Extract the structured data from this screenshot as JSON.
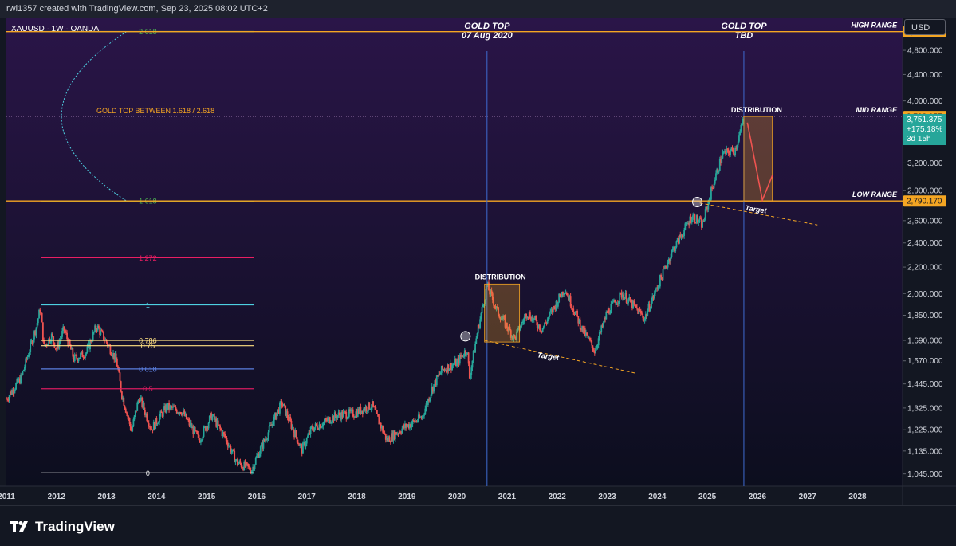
{
  "header": {
    "credit": "rwl1357 created with TradingView.com, Sep 23, 2025 08:02 UTC+2"
  },
  "symbol_label": "XAUUSD · 1W · OANDA",
  "currency_button": "USD",
  "brand": {
    "name": "TradingView"
  },
  "colors": {
    "background_top": "#2a1548",
    "background_bottom": "#0c0e1e",
    "up": "#26a69a",
    "down": "#ef5350",
    "range_line": "#f5a623",
    "price_badge": "#f5a623",
    "vline": "#3f6bd1"
  },
  "chart_data": {
    "type": "candlestick",
    "x_axis": {
      "ticks": [
        "2011",
        "2012",
        "2013",
        "2014",
        "2015",
        "2016",
        "2017",
        "2018",
        "2019",
        "2020",
        "2021",
        "2022",
        "2023",
        "2024",
        "2025",
        "2026",
        "2027",
        "2028"
      ],
      "range": [
        2011,
        2028.9
      ]
    },
    "y_axis": {
      "scale": "log",
      "range": [
        1000,
        5400
      ],
      "ticks": [
        "1,045.000",
        "1,135.000",
        "1,225.000",
        "1,325.000",
        "1,445.000",
        "1,570.000",
        "1,690.000",
        "1,850.000",
        "2,000.000",
        "2,200.000",
        "2,400.000",
        "2,600.000",
        "2,900.000",
        "3,200.000",
        "4,000.000",
        "4,400.000",
        "4,800.000"
      ]
    },
    "price_tags": [
      {
        "label": "5,133.527",
        "value": 5133.527
      },
      {
        "label": "3,783.057",
        "value": 3783.057
      },
      {
        "label": "2,790.170",
        "value": 2790.17
      }
    ],
    "current_price": {
      "price": "3,751.375",
      "change": "+175.18%",
      "countdown": "3d 15h",
      "value": 3751.375
    },
    "range_lines": [
      {
        "label": "HIGH RANGE",
        "value": 5133.527
      },
      {
        "label": "MID RANGE",
        "value": 3783.057
      },
      {
        "label": "LOW RANGE",
        "value": 2790.17
      }
    ],
    "fib_levels": [
      {
        "label": "0",
        "value": 1049,
        "color": "#ffffff"
      },
      {
        "label": "0.5",
        "value": 1420,
        "color": "#d81b60"
      },
      {
        "label": "0.618",
        "value": 1525,
        "color": "#5b7fe0"
      },
      {
        "label": "0.75",
        "value": 1658,
        "color": "#ffe082"
      },
      {
        "label": "0.786",
        "value": 1690,
        "color": "#ffe082"
      },
      {
        "label": "1",
        "value": 1920,
        "color": "#4dd0e1"
      },
      {
        "label": "1.272",
        "value": 2275,
        "color": "#e91e63"
      },
      {
        "label": "1.618",
        "value": 2790,
        "color": "#4caf50"
      },
      {
        "label": "2.618",
        "value": 5133,
        "color": "#4caf50"
      }
    ],
    "annotations": {
      "gold_top_between": "GOLD TOP BETWEEN 1.618 / 2.618",
      "gold_top_1_line1": "GOLD TOP",
      "gold_top_1_line2": "07 Aug 2020",
      "gold_top_2_line1": "GOLD TOP",
      "gold_top_2_line2": "TBD",
      "distribution_1": "DISTRIBUTION",
      "distribution_2": "DISTRIBUTION",
      "target_1": "Target",
      "target_2": "Target"
    },
    "events": {
      "gold_top_1_date": 2020.6,
      "gold_top_2_date": 2025.73
    },
    "price_path": [
      [
        2011.0,
        1370
      ],
      [
        2011.3,
        1480
      ],
      [
        2011.6,
        1780
      ],
      [
        2011.68,
        1900
      ],
      [
        2011.75,
        1650
      ],
      [
        2011.9,
        1720
      ],
      [
        2012.0,
        1640
      ],
      [
        2012.15,
        1760
      ],
      [
        2012.35,
        1580
      ],
      [
        2012.6,
        1620
      ],
      [
        2012.8,
        1780
      ],
      [
        2013.0,
        1680
      ],
      [
        2013.2,
        1570
      ],
      [
        2013.3,
        1400
      ],
      [
        2013.5,
        1220
      ],
      [
        2013.65,
        1380
      ],
      [
        2013.9,
        1230
      ],
      [
        2014.2,
        1330
      ],
      [
        2014.5,
        1310
      ],
      [
        2014.85,
        1180
      ],
      [
        2015.1,
        1290
      ],
      [
        2015.4,
        1180
      ],
      [
        2015.6,
        1090
      ],
      [
        2015.9,
        1060
      ],
      [
        2016.0,
        1110
      ],
      [
        2016.5,
        1350
      ],
      [
        2016.9,
        1140
      ],
      [
        2017.1,
        1230
      ],
      [
        2017.6,
        1290
      ],
      [
        2017.95,
        1300
      ],
      [
        2018.3,
        1340
      ],
      [
        2018.6,
        1180
      ],
      [
        2018.9,
        1230
      ],
      [
        2019.3,
        1280
      ],
      [
        2019.5,
        1420
      ],
      [
        2019.7,
        1520
      ],
      [
        2020.0,
        1560
      ],
      [
        2020.2,
        1640
      ],
      [
        2020.25,
        1480
      ],
      [
        2020.4,
        1730
      ],
      [
        2020.6,
        2060
      ],
      [
        2020.8,
        1880
      ],
      [
        2021.15,
        1700
      ],
      [
        2021.4,
        1870
      ],
      [
        2021.7,
        1760
      ],
      [
        2022.15,
        2040
      ],
      [
        2022.5,
        1760
      ],
      [
        2022.75,
        1630
      ],
      [
        2023.0,
        1870
      ],
      [
        2023.3,
        2000
      ],
      [
        2023.75,
        1830
      ],
      [
        2024.0,
        2050
      ],
      [
        2024.3,
        2330
      ],
      [
        2024.7,
        2650
      ],
      [
        2024.9,
        2560
      ],
      [
        2025.1,
        2930
      ],
      [
        2025.3,
        3300
      ],
      [
        2025.55,
        3350
      ],
      [
        2025.73,
        3751
      ]
    ]
  }
}
